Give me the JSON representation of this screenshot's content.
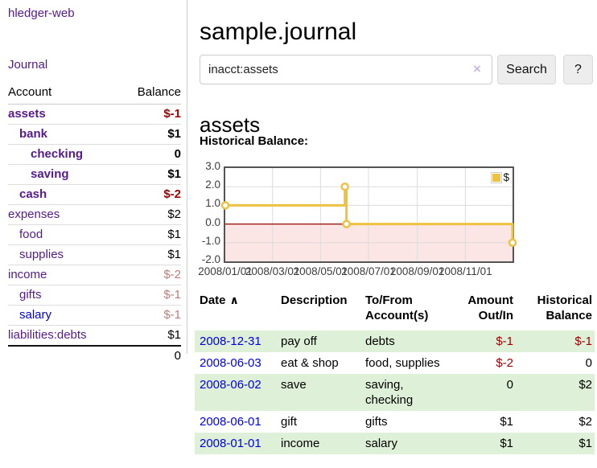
{
  "app": {
    "brand": "hledger-web",
    "nav_journal": "Journal"
  },
  "sidebar": {
    "header": {
      "account": "Account",
      "balance": "Balance"
    },
    "accounts": [
      {
        "name": "assets",
        "balance": "$-1",
        "depth": 0,
        "bold": true,
        "neg": "strong"
      },
      {
        "name": "bank",
        "balance": "$1",
        "depth": 1,
        "bold": true,
        "neg": "none"
      },
      {
        "name": "checking",
        "balance": "0",
        "depth": 2,
        "bold": true,
        "neg": "none"
      },
      {
        "name": "saving",
        "balance": "$1",
        "depth": 2,
        "bold": true,
        "neg": "none"
      },
      {
        "name": "cash",
        "balance": "$-2",
        "depth": 1,
        "bold": true,
        "neg": "strong"
      },
      {
        "name": "expenses",
        "balance": "$2",
        "depth": 0,
        "bold": false,
        "neg": "none"
      },
      {
        "name": "food",
        "balance": "$1",
        "depth": 1,
        "bold": false,
        "neg": "none"
      },
      {
        "name": "supplies",
        "balance": "$1",
        "depth": 1,
        "bold": false,
        "neg": "none"
      },
      {
        "name": "income",
        "balance": "$-2",
        "depth": 0,
        "bold": false,
        "neg": "dim"
      },
      {
        "name": "gifts",
        "balance": "$-1",
        "depth": 1,
        "bold": false,
        "neg": "dim"
      },
      {
        "name": "salary",
        "balance": "$-1",
        "depth": 1,
        "bold": false,
        "neg": "dim",
        "link": "blue"
      },
      {
        "name": "liabilities:debts",
        "balance": "$1",
        "depth": 0,
        "bold": false,
        "neg": "none"
      }
    ],
    "total": "0"
  },
  "main": {
    "title": "sample.journal",
    "search": {
      "value": "inacct:assets",
      "clear_icon": "×",
      "button": "Search",
      "help": "?"
    },
    "account_heading": "assets",
    "chart_label": "Historical Balance:"
  },
  "chart_data": {
    "type": "line",
    "step": true,
    "title": "Historical Balance",
    "series": [
      {
        "name": "$",
        "color": "#edc240",
        "points": [
          [
            "2008-01-01",
            1
          ],
          [
            "2008-06-01",
            2
          ],
          [
            "2008-06-03",
            0
          ],
          [
            "2008-12-31",
            -1
          ]
        ]
      }
    ],
    "x_start": "2008-01-01",
    "x_end": "2008-12-31",
    "x_ticks": [
      "2008/01/01",
      "2008/03/01",
      "2008/05/01",
      "2008/07/01",
      "2008/09/01",
      "2008/11/01"
    ],
    "y_ticks": [
      "3.0",
      "2.0",
      "1.0",
      "0.0",
      "-1.0",
      "-2.0"
    ],
    "ylim": [
      -2,
      3
    ],
    "grid": true,
    "grid_color": "#dcdcdc",
    "border_color": "#545454",
    "negative_region_fill": "#fce5e5",
    "zero_line_color": "#990000",
    "legend_position": "top-right",
    "legend": "$"
  },
  "register": {
    "headers": {
      "date": "Date",
      "sort_icon": "∧",
      "description": "Description",
      "accounts": "To/From Account(s)",
      "amount": "Amount Out/In",
      "balance": "Historical Balance"
    },
    "rows": [
      {
        "date": "2008-12-31",
        "description": "pay off",
        "accounts": "debts",
        "amount": "$-1",
        "amount_neg": true,
        "balance": "$-1",
        "balance_neg": true
      },
      {
        "date": "2008-06-03",
        "description": "eat & shop",
        "accounts": "food, supplies",
        "amount": "$-2",
        "amount_neg": true,
        "balance": "0",
        "balance_neg": false
      },
      {
        "date": "2008-06-02",
        "description": "save",
        "accounts": "saving, checking",
        "amount": "0",
        "amount_neg": false,
        "balance": "$2",
        "balance_neg": false
      },
      {
        "date": "2008-06-01",
        "description": "gift",
        "accounts": "gifts",
        "amount": "$1",
        "amount_neg": false,
        "balance": "$2",
        "balance_neg": false
      },
      {
        "date": "2008-01-01",
        "description": "income",
        "accounts": "salary",
        "amount": "$1",
        "amount_neg": false,
        "balance": "$1",
        "balance_neg": false
      }
    ]
  }
}
